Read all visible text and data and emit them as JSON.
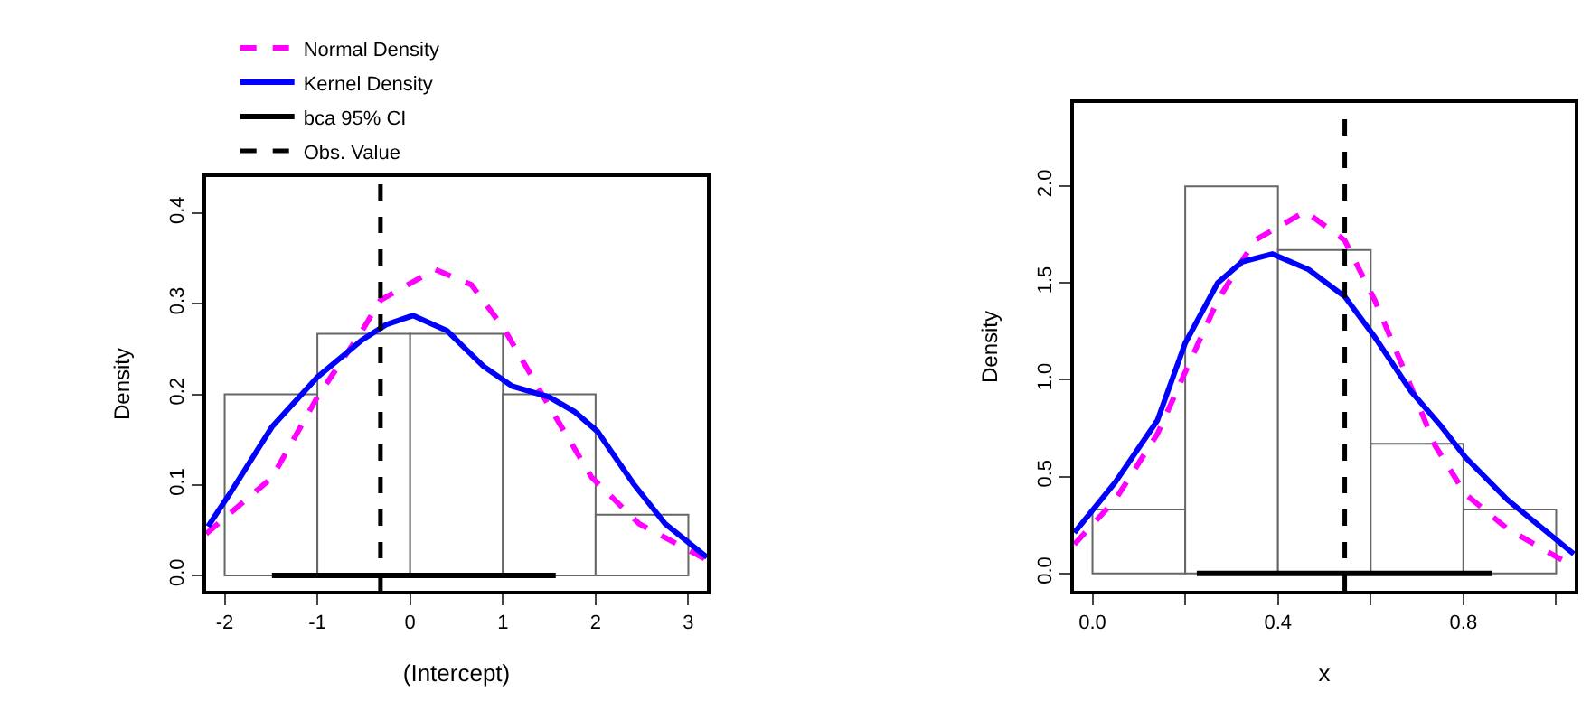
{
  "chart_data": [
    {
      "type": "histogram",
      "xlabel": "(Intercept)",
      "ylabel": "Density",
      "bins": [
        -2,
        -1,
        0,
        1,
        2,
        3
      ],
      "values": [
        0.2,
        0.267,
        0.267,
        0.2,
        0.067
      ],
      "color": "#ffffff",
      "xlim": [
        -2.2,
        3.2
      ],
      "xticks": [
        -2,
        -1,
        0,
        1,
        2,
        3
      ],
      "ylim": [
        -0.017,
        0.44
      ],
      "yticks": [
        {
          "value": 0,
          "label": "0.0"
        },
        0.1,
        0.2,
        0.3,
        0.4
      ],
      "grid": false,
      "legend": "top",
      "marker": "none",
      "series": [
        {
          "type": "line",
          "name": "Normal Density",
          "color": "#ff00ff",
          "line_style": "dashed",
          "x": [
            -2.2,
            -1.49,
            -1.0,
            -0.52,
            -0.32,
            0.27,
            0.66,
            1.01,
            1.44,
            1.96,
            2.47,
            3.2
          ],
          "values": [
            0.046,
            0.108,
            0.197,
            0.27,
            0.304,
            0.338,
            0.321,
            0.273,
            0.197,
            0.108,
            0.057,
            0.017
          ]
        },
        {
          "type": "line",
          "name": "Kernel Density",
          "color": "#0000ff",
          "line_style": "solid",
          "x": [
            -2.18,
            -1.94,
            -1.49,
            -1.0,
            -0.52,
            -0.26,
            0.03,
            0.4,
            0.79,
            1.1,
            1.5,
            1.77,
            2.02,
            2.41,
            2.75,
            3.2
          ],
          "values": [
            0.054,
            0.091,
            0.164,
            0.219,
            0.26,
            0.277,
            0.287,
            0.27,
            0.231,
            0.209,
            0.197,
            0.181,
            0.159,
            0.101,
            0.057,
            0.02
          ]
        },
        {
          "type": "line",
          "name": "bca 95% CI",
          "color": "#000000",
          "line_style": "solid",
          "x": [
            -1.49,
            1.57
          ],
          "values": [
            0,
            0
          ]
        }
      ],
      "ref_lines": [
        {
          "axis": "x",
          "value": -0.32,
          "label": "Obs. Value",
          "color": "#000000",
          "line_style": "dashed"
        }
      ]
    },
    {
      "type": "histogram",
      "xlabel": "x",
      "ylabel": "Density",
      "bins": [
        0,
        0.2,
        0.4,
        0.6,
        0.8,
        1.0
      ],
      "values": [
        0.33,
        2.0,
        1.67,
        0.67,
        0.33
      ],
      "color": "#ffffff",
      "xlim": [
        -0.04,
        1.04
      ],
      "xticks": [
        {
          "value": 0,
          "label": "0.0"
        },
        {
          "value": 0.2,
          "label": null
        },
        0.4,
        {
          "value": 0.6,
          "label": null
        },
        0.8,
        {
          "value": 1.0,
          "label": null
        }
      ],
      "ylim": [
        -0.09,
        2.43
      ],
      "yticks": [
        {
          "value": 0,
          "label": "0.0"
        },
        0.5,
        {
          "value": 1,
          "label": "1.0"
        },
        1.5,
        {
          "value": 2,
          "label": "2.0"
        }
      ],
      "grid": false,
      "legend": false,
      "marker": "none",
      "series": [
        {
          "type": "line",
          "color": "#ff00ff",
          "line_style": "dashed",
          "x": [
            -0.039,
            0.049,
            0.14,
            0.2,
            0.27,
            0.35,
            0.459,
            0.544,
            0.609,
            0.674,
            0.739,
            0.804,
            0.895,
            1.012
          ],
          "values": [
            0.15,
            0.38,
            0.72,
            1.04,
            1.41,
            1.72,
            1.87,
            1.72,
            1.41,
            1.04,
            0.66,
            0.41,
            0.23,
            0.07
          ]
        },
        {
          "type": "line",
          "color": "#0000ff",
          "line_style": "solid",
          "x": [
            -0.039,
            0.049,
            0.14,
            0.2,
            0.27,
            0.323,
            0.388,
            0.466,
            0.544,
            0.609,
            0.687,
            0.752,
            0.804,
            0.895,
            1.038
          ],
          "values": [
            0.21,
            0.47,
            0.79,
            1.19,
            1.5,
            1.61,
            1.65,
            1.57,
            1.43,
            1.22,
            0.94,
            0.76,
            0.6,
            0.38,
            0.1
          ]
        },
        {
          "type": "line",
          "color": "#000000",
          "line_style": "solid",
          "x": [
            0.225,
            0.862
          ],
          "values": [
            0,
            0
          ]
        }
      ],
      "ref_lines": [
        {
          "axis": "x",
          "value": 0.544,
          "color": "#000000",
          "line_style": "dashed"
        }
      ]
    }
  ]
}
